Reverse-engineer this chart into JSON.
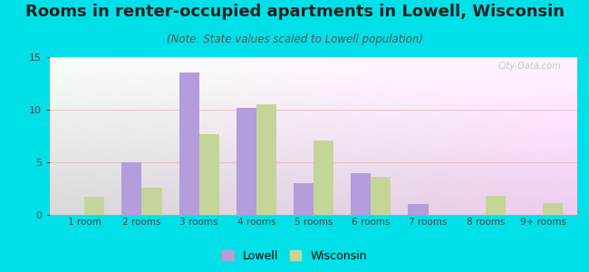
{
  "title": "Rooms in renter-occupied apartments in Lowell, Wisconsin",
  "subtitle": "(Note: State values scaled to Lowell population)",
  "categories": [
    "1 room",
    "2 rooms",
    "3 rooms",
    "4 rooms",
    "5 rooms",
    "6 rooms",
    "7 rooms",
    "8 rooms",
    "9+ rooms"
  ],
  "lowell": [
    0,
    5,
    13.5,
    10.2,
    3,
    4,
    1,
    0,
    0
  ],
  "wisconsin": [
    1.7,
    2.6,
    7.7,
    10.5,
    7.1,
    3.6,
    0,
    1.8,
    1.1
  ],
  "lowell_color": "#b39ddb",
  "wisconsin_color": "#c5d59a",
  "bar_width": 0.35,
  "ylim": [
    0,
    15
  ],
  "yticks": [
    0,
    5,
    10,
    15
  ],
  "bg_color": "#00e0e8",
  "legend_lowell": "Lowell",
  "legend_wisconsin": "Wisconsin",
  "title_fontsize": 13,
  "subtitle_fontsize": 8.5,
  "watermark": "City-Data.com"
}
